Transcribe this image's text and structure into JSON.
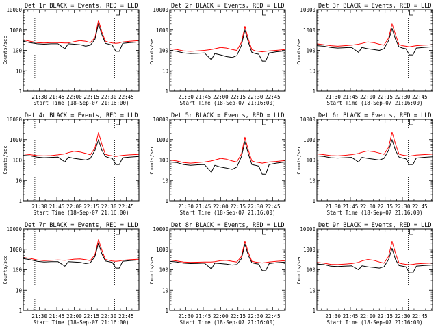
{
  "colors": {
    "events": "#000000",
    "lld": "#ff0000",
    "axis": "#000000",
    "background": "#ffffff"
  },
  "chart_data": [
    {
      "type": "line",
      "title": "Det 1r BLACK = Events, RED = LLD",
      "xlabel": "Start Time (18-Sep-07 21:16:00)",
      "ylabel": "Counts/sec",
      "y_scale": "log",
      "ylim": [
        1,
        10000
      ],
      "xlim": [
        "21:16",
        "22:56"
      ],
      "x_ticks": [
        "21:30",
        "21:45",
        "22:00",
        "22:15",
        "22:30",
        "22:45"
      ],
      "y_ticks": [
        "1",
        "10",
        "100",
        "1000",
        "10000"
      ],
      "event_markers": [
        "21:26",
        "22:35"
      ],
      "marker_flag": "22:35",
      "x": [
        "21:16",
        "21:22",
        "21:28",
        "21:34",
        "21:40",
        "21:46",
        "21:52",
        "21:55",
        "22:00",
        "22:05",
        "22:10",
        "22:14",
        "22:18",
        "22:21",
        "22:24",
        "22:27",
        "22:30",
        "22:33",
        "22:36",
        "22:39",
        "22:42",
        "22:48",
        "22:56"
      ],
      "series": [
        {
          "name": "BLACK = Events",
          "values": [
            280,
            240,
            210,
            200,
            210,
            210,
            120,
            210,
            200,
            190,
            160,
            180,
            350,
            2000,
            600,
            220,
            200,
            180,
            90,
            90,
            220,
            240,
            260
          ]
        },
        {
          "name": "RED = LLD",
          "values": [
            330,
            280,
            240,
            230,
            240,
            240,
            230,
            230,
            270,
            300,
            280,
            240,
            420,
            3000,
            800,
            280,
            250,
            230,
            220,
            230,
            260,
            280,
            300
          ]
        }
      ]
    },
    {
      "type": "line",
      "title": "Det 2r BLACK = Events, RED = LLD",
      "xlabel": "Start Time (18-Sep-07 21:16:00)",
      "ylabel": "Counts/sec",
      "y_scale": "log",
      "ylim": [
        1,
        10000
      ],
      "xlim": [
        "21:16",
        "22:56"
      ],
      "x_ticks": [
        "21:30",
        "21:45",
        "22:00",
        "22:15",
        "22:30",
        "22:45"
      ],
      "y_ticks": [
        "1",
        "10",
        "100",
        "1000",
        "10000"
      ],
      "event_markers": [
        "22:35"
      ],
      "marker_flag": "22:35",
      "x": [
        "21:16",
        "21:22",
        "21:28",
        "21:34",
        "21:40",
        "21:46",
        "21:52",
        "21:55",
        "22:00",
        "22:05",
        "22:10",
        "22:14",
        "22:18",
        "22:21",
        "22:24",
        "22:27",
        "22:30",
        "22:33",
        "22:36",
        "22:39",
        "22:42",
        "22:48",
        "22:56"
      ],
      "series": [
        {
          "name": "BLACK = Events",
          "values": [
            100,
            90,
            75,
            70,
            72,
            75,
            35,
            70,
            60,
            50,
            45,
            55,
            180,
            1000,
            250,
            80,
            70,
            65,
            30,
            30,
            75,
            85,
            95
          ]
        },
        {
          "name": "RED = LLD",
          "values": [
            120,
            110,
            95,
            90,
            95,
            100,
            110,
            120,
            140,
            130,
            110,
            100,
            250,
            1500,
            350,
            110,
            95,
            90,
            85,
            90,
            95,
            100,
            110
          ]
        }
      ]
    },
    {
      "type": "line",
      "title": "Det 3r BLACK = Events, RED = LLD",
      "xlabel": "Start Time (18-Sep-07 21:16:00)",
      "ylabel": "Counts/sec",
      "y_scale": "log",
      "ylim": [
        1,
        10000
      ],
      "xlim": [
        "21:16",
        "22:56"
      ],
      "x_ticks": [
        "21:30",
        "21:45",
        "22:00",
        "22:15",
        "22:30",
        "22:45"
      ],
      "y_ticks": [
        "1",
        "10",
        "100",
        "1000",
        "10000"
      ],
      "event_markers": [
        "22:35"
      ],
      "marker_flag": "22:35",
      "x": [
        "21:16",
        "21:22",
        "21:28",
        "21:34",
        "21:40",
        "21:46",
        "21:52",
        "21:55",
        "22:00",
        "22:05",
        "22:10",
        "22:14",
        "22:18",
        "22:21",
        "22:24",
        "22:27",
        "22:30",
        "22:33",
        "22:36",
        "22:39",
        "22:42",
        "22:48",
        "22:56"
      ],
      "series": [
        {
          "name": "BLACK = Events",
          "values": [
            170,
            160,
            140,
            130,
            135,
            140,
            80,
            140,
            120,
            110,
            100,
            120,
            300,
            1200,
            350,
            150,
            130,
            120,
            60,
            60,
            130,
            140,
            150
          ]
        },
        {
          "name": "RED = LLD",
          "values": [
            210,
            190,
            170,
            160,
            170,
            180,
            200,
            220,
            260,
            240,
            200,
            180,
            400,
            2000,
            600,
            190,
            170,
            160,
            150,
            160,
            170,
            180,
            190
          ]
        }
      ]
    },
    {
      "type": "line",
      "title": "Det 4r BLACK = Events, RED = LLD",
      "xlabel": "Start Time (18-Sep-07 21:16:00)",
      "ylabel": "Counts/sec",
      "y_scale": "log",
      "ylim": [
        1,
        10000
      ],
      "xlim": [
        "21:16",
        "22:56"
      ],
      "x_ticks": [
        "21:30",
        "21:45",
        "22:00",
        "22:15",
        "22:30",
        "22:45"
      ],
      "y_ticks": [
        "1",
        "10",
        "100",
        "1000",
        "10000"
      ],
      "event_markers": [
        "21:26",
        "22:35"
      ],
      "marker_flag": "22:35",
      "x": [
        "21:16",
        "21:22",
        "21:28",
        "21:34",
        "21:40",
        "21:46",
        "21:52",
        "21:55",
        "22:00",
        "22:05",
        "22:10",
        "22:14",
        "22:18",
        "22:21",
        "22:24",
        "22:27",
        "22:30",
        "22:33",
        "22:36",
        "22:39",
        "22:42",
        "22:48",
        "22:56"
      ],
      "series": [
        {
          "name": "BLACK = Events",
          "values": [
            170,
            160,
            140,
            130,
            135,
            140,
            80,
            140,
            120,
            110,
            100,
            120,
            300,
            1000,
            300,
            150,
            130,
            120,
            60,
            60,
            130,
            140,
            150
          ]
        },
        {
          "name": "RED = LLD",
          "values": [
            200,
            185,
            165,
            160,
            165,
            180,
            200,
            230,
            270,
            250,
            210,
            180,
            400,
            2200,
            600,
            190,
            170,
            160,
            150,
            160,
            170,
            180,
            190
          ]
        }
      ]
    },
    {
      "type": "line",
      "title": "Det 5r BLACK = Events, RED = LLD",
      "xlabel": "Start Time (18-Sep-07 21:16:00)",
      "ylabel": "Counts/sec",
      "y_scale": "log",
      "ylim": [
        1,
        10000
      ],
      "xlim": [
        "21:16",
        "22:56"
      ],
      "x_ticks": [
        "21:30",
        "21:45",
        "22:00",
        "22:15",
        "22:30",
        "22:45"
      ],
      "y_ticks": [
        "1",
        "10",
        "100",
        "1000",
        "10000"
      ],
      "event_markers": [
        "22:35"
      ],
      "marker_flag": "22:35",
      "x": [
        "21:16",
        "21:22",
        "21:28",
        "21:34",
        "21:40",
        "21:46",
        "21:52",
        "21:55",
        "22:00",
        "22:05",
        "22:10",
        "22:14",
        "22:18",
        "22:21",
        "22:24",
        "22:27",
        "22:30",
        "22:33",
        "22:36",
        "22:39",
        "22:42",
        "22:48",
        "22:56"
      ],
      "series": [
        {
          "name": "BLACK = Events",
          "values": [
            80,
            75,
            60,
            55,
            58,
            60,
            25,
            55,
            45,
            40,
            35,
            45,
            150,
            800,
            200,
            60,
            55,
            50,
            20,
            20,
            60,
            70,
            80
          ]
        },
        {
          "name": "RED = LLD",
          "values": [
            100,
            90,
            75,
            70,
            75,
            80,
            90,
            100,
            120,
            110,
            90,
            80,
            200,
            1300,
            300,
            90,
            80,
            75,
            70,
            75,
            80,
            85,
            95
          ]
        }
      ]
    },
    {
      "type": "line",
      "title": "Det 6r BLACK = Events, RED = LLD",
      "xlabel": "Start Time (18-Sep-07 21:16:00)",
      "ylabel": "Counts/sec",
      "y_scale": "log",
      "ylim": [
        1,
        10000
      ],
      "xlim": [
        "21:16",
        "22:56"
      ],
      "x_ticks": [
        "21:30",
        "21:45",
        "22:00",
        "22:15",
        "22:30",
        "22:45"
      ],
      "y_ticks": [
        "1",
        "10",
        "100",
        "1000",
        "10000"
      ],
      "event_markers": [
        "22:35"
      ],
      "marker_flag": "22:35",
      "x": [
        "21:16",
        "21:22",
        "21:28",
        "21:34",
        "21:40",
        "21:46",
        "21:52",
        "21:55",
        "22:00",
        "22:05",
        "22:10",
        "22:14",
        "22:18",
        "22:21",
        "22:24",
        "22:27",
        "22:30",
        "22:33",
        "22:36",
        "22:39",
        "22:42",
        "22:48",
        "22:56"
      ],
      "series": [
        {
          "name": "BLACK = Events",
          "values": [
            160,
            150,
            130,
            125,
            130,
            135,
            80,
            135,
            120,
            110,
            100,
            120,
            300,
            1000,
            300,
            140,
            125,
            115,
            60,
            60,
            125,
            135,
            145
          ]
        },
        {
          "name": "RED = LLD",
          "values": [
            200,
            185,
            165,
            160,
            170,
            185,
            210,
            240,
            280,
            260,
            220,
            190,
            420,
            2300,
            620,
            195,
            175,
            165,
            155,
            165,
            175,
            185,
            195
          ]
        }
      ]
    },
    {
      "type": "line",
      "title": "Det 7r BLACK = Events, RED = LLD",
      "xlabel": "Start Time (18-Sep-07 21:16:00)",
      "ylabel": "Counts/sec",
      "y_scale": "log",
      "ylim": [
        1,
        10000
      ],
      "xlim": [
        "21:16",
        "22:56"
      ],
      "x_ticks": [
        "21:30",
        "21:45",
        "22:00",
        "22:15",
        "22:30",
        "22:45"
      ],
      "y_ticks": [
        "1",
        "10",
        "100",
        "1000",
        "10000"
      ],
      "event_markers": [
        "21:26",
        "22:35"
      ],
      "marker_flag": "22:35",
      "x": [
        "21:16",
        "21:22",
        "21:28",
        "21:34",
        "21:40",
        "21:46",
        "21:52",
        "21:55",
        "22:00",
        "22:05",
        "22:10",
        "22:14",
        "22:18",
        "22:21",
        "22:24",
        "22:27",
        "22:30",
        "22:33",
        "22:36",
        "22:39",
        "22:42",
        "22:48",
        "22:56"
      ],
      "series": [
        {
          "name": "BLACK = Events",
          "values": [
            350,
            310,
            260,
            240,
            250,
            250,
            150,
            250,
            240,
            230,
            200,
            220,
            450,
            2000,
            600,
            270,
            250,
            230,
            120,
            120,
            260,
            280,
            300
          ]
        },
        {
          "name": "RED = LLD",
          "values": [
            400,
            360,
            300,
            280,
            290,
            300,
            290,
            300,
            330,
            340,
            310,
            280,
            550,
            3000,
            900,
            320,
            290,
            270,
            260,
            270,
            290,
            310,
            330
          ]
        }
      ]
    },
    {
      "type": "line",
      "title": "Det 8r BLACK = Events, RED = LLD",
      "xlabel": "Start Time (18-Sep-07 21:16:00)",
      "ylabel": "Counts/sec",
      "y_scale": "log",
      "ylim": [
        1,
        10000
      ],
      "xlim": [
        "21:16",
        "22:56"
      ],
      "x_ticks": [
        "21:30",
        "21:45",
        "22:00",
        "22:15",
        "22:30",
        "22:45"
      ],
      "y_ticks": [
        "1",
        "10",
        "100",
        "1000",
        "10000"
      ],
      "event_markers": [
        "22:35"
      ],
      "marker_flag": "22:35",
      "x": [
        "21:16",
        "21:22",
        "21:28",
        "21:34",
        "21:40",
        "21:46",
        "21:52",
        "21:55",
        "22:00",
        "22:05",
        "22:10",
        "22:14",
        "22:18",
        "22:21",
        "22:24",
        "22:27",
        "22:30",
        "22:33",
        "22:36",
        "22:39",
        "22:42",
        "22:48",
        "22:56"
      ],
      "series": [
        {
          "name": "BLACK = Events",
          "values": [
            260,
            240,
            210,
            200,
            205,
            210,
            110,
            210,
            200,
            190,
            170,
            180,
            350,
            1800,
            500,
            220,
            200,
            190,
            90,
            90,
            200,
            220,
            240
          ]
        },
        {
          "name": "RED = LLD",
          "values": [
            300,
            270,
            240,
            230,
            235,
            240,
            240,
            250,
            280,
            290,
            260,
            240,
            450,
            2500,
            700,
            260,
            240,
            225,
            215,
            225,
            240,
            260,
            280
          ]
        }
      ]
    },
    {
      "type": "line",
      "title": "Det 9r BLACK = Events, RED = LLD",
      "xlabel": "Start Time (18-Sep-07 21:16:00)",
      "ylabel": "Counts/sec",
      "y_scale": "log",
      "ylim": [
        1,
        10000
      ],
      "xlim": [
        "21:16",
        "22:56"
      ],
      "x_ticks": [
        "21:30",
        "21:45",
        "22:00",
        "22:15",
        "22:30",
        "22:45"
      ],
      "y_ticks": [
        "1",
        "10",
        "100",
        "1000",
        "10000"
      ],
      "event_markers": [
        "22:35"
      ],
      "marker_flag": "22:35",
      "x": [
        "21:16",
        "21:22",
        "21:28",
        "21:34",
        "21:40",
        "21:46",
        "21:52",
        "21:55",
        "22:00",
        "22:05",
        "22:10",
        "22:14",
        "22:18",
        "22:21",
        "22:24",
        "22:27",
        "22:30",
        "22:33",
        "22:36",
        "22:39",
        "22:42",
        "22:48",
        "22:56"
      ],
      "series": [
        {
          "name": "BLACK = Events",
          "values": [
            190,
            180,
            150,
            145,
            150,
            155,
            100,
            155,
            140,
            130,
            120,
            140,
            320,
            1100,
            320,
            160,
            150,
            140,
            70,
            70,
            150,
            160,
            170
          ]
        },
        {
          "name": "RED = LLD",
          "values": [
            230,
            210,
            185,
            180,
            190,
            200,
            230,
            270,
            320,
            290,
            240,
            210,
            450,
            2400,
            650,
            215,
            195,
            185,
            175,
            185,
            195,
            205,
            215
          ]
        }
      ]
    }
  ]
}
